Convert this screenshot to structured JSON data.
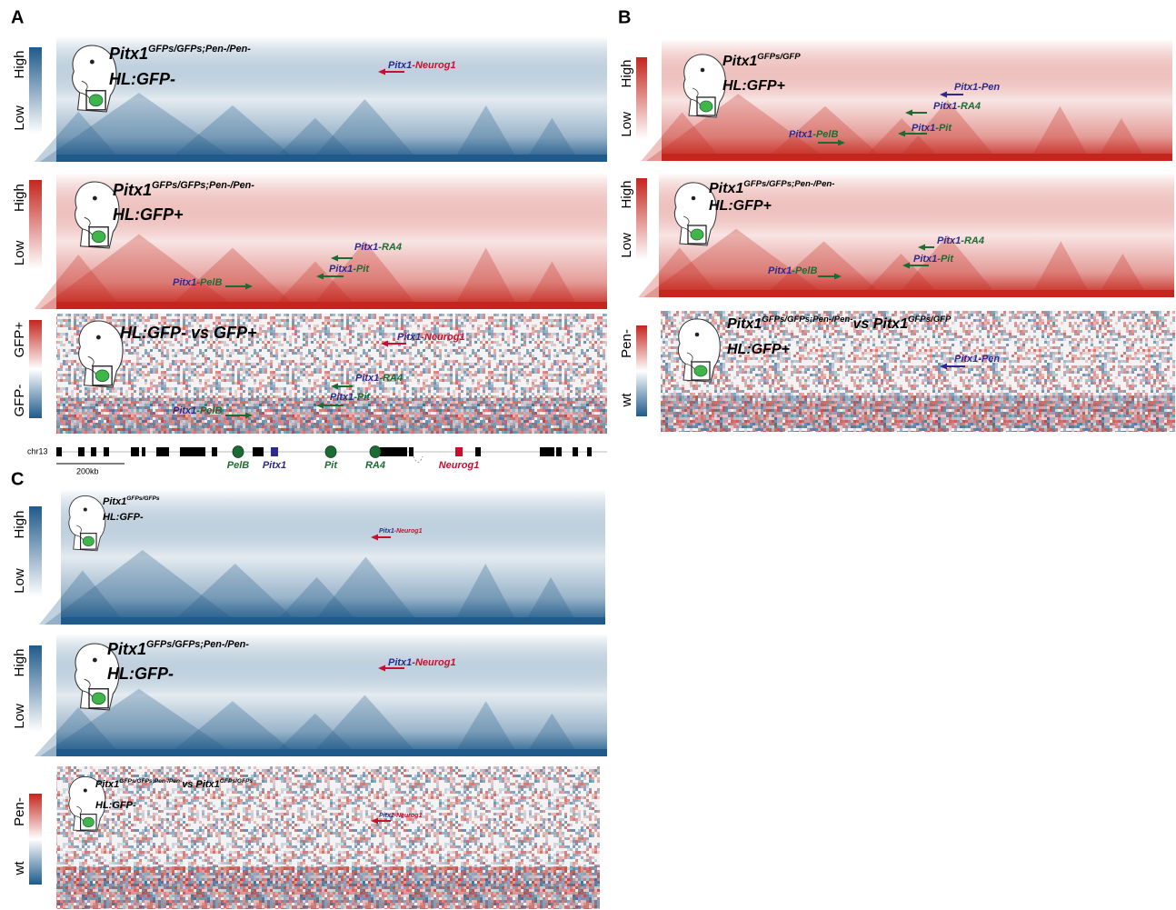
{
  "panels": [
    {
      "label": "A",
      "maps": [
        {
          "kind": "single",
          "color": "#1f5a8a",
          "scale": [
            "High",
            "Low"
          ],
          "title": [
            {
              "text": "Pitx1"
            },
            {
              "text": "GFPs/GFPs;Pen-/Pen-",
              "sup": true
            }
          ],
          "subtitle": "HL:GFP-",
          "arrows": [
            {
              "parts": [
                {
                  "text": "Pitx1",
                  "color": "#2d2a8f"
                },
                {
                  "text": "-Neurog1",
                  "color": "#c8102e"
                }
              ]
            }
          ]
        },
        {
          "kind": "single",
          "color": "#c4261d",
          "scale": [
            "High",
            "Low"
          ],
          "title": [
            {
              "text": "Pitx1"
            },
            {
              "text": "GFPs/GFPs;Pen-/Pen-",
              "sup": true
            }
          ],
          "subtitle": "HL:GFP+",
          "arrows": [
            {
              "parts": [
                {
                  "text": "Pitx1",
                  "color": "#2d2a8f"
                },
                {
                  "text": "-RA4",
                  "color": "#1d6b34"
                }
              ]
            },
            {
              "parts": [
                {
                  "text": "Pitx1",
                  "color": "#2d2a8f"
                },
                {
                  "text": "-Pit",
                  "color": "#1d6b34"
                }
              ]
            },
            {
              "parts": [
                {
                  "text": "Pitx1",
                  "color": "#2d2a8f"
                },
                {
                  "text": "-PelB",
                  "color": "#1d6b34"
                }
              ]
            }
          ]
        },
        {
          "kind": "diff",
          "color": "#c4261d",
          "color2": "#1f5a8a",
          "scale": [
            "GFP+",
            "GFP-"
          ],
          "title": [
            {
              "text": "HL:GFP- vs GFP+"
            }
          ],
          "arrows": [
            {
              "parts": [
                {
                  "text": "Pitx1",
                  "color": "#2d2a8f"
                },
                {
                  "text": "-Neurog1",
                  "color": "#c8102e"
                }
              ]
            },
            {
              "parts": [
                {
                  "text": "Pitx1",
                  "color": "#2d2a8f"
                },
                {
                  "text": "-RA4",
                  "color": "#1d6b34"
                }
              ]
            },
            {
              "parts": [
                {
                  "text": "Pitx1",
                  "color": "#2d2a8f"
                },
                {
                  "text": "-Pit",
                  "color": "#1d6b34"
                }
              ]
            },
            {
              "parts": [
                {
                  "text": "Pitx1",
                  "color": "#2d2a8f"
                },
                {
                  "text": "-PelB",
                  "color": "#1d6b34"
                }
              ]
            }
          ]
        }
      ],
      "track": {
        "chrom": "chr13",
        "scale_label": "200kb",
        "genes": [
          {
            "name": "PelB",
            "color": "#1d6b34"
          },
          {
            "name": "Pitx1",
            "color": "#2d2a8f"
          },
          {
            "name": "Pit",
            "color": "#1d6b34"
          },
          {
            "name": "RA4",
            "color": "#1d6b34"
          },
          {
            "name": "Neurog1",
            "color": "#c8102e"
          }
        ]
      }
    },
    {
      "label": "B",
      "maps": [
        {
          "kind": "single",
          "color": "#c4261d",
          "scale": [
            "High",
            "Low"
          ],
          "title": [
            {
              "text": "Pitx1"
            },
            {
              "text": "GFPs/GFP",
              "sup": true
            }
          ],
          "subtitle": "HL:GFP+",
          "arrows": [
            {
              "parts": [
                {
                  "text": "Pitx1",
                  "color": "#2d2a8f"
                },
                {
                  "text": "-Pen",
                  "color": "#2d2a8f"
                }
              ]
            },
            {
              "parts": [
                {
                  "text": "Pitx1",
                  "color": "#2d2a8f"
                },
                {
                  "text": "-RA4",
                  "color": "#1d6b34"
                }
              ]
            },
            {
              "parts": [
                {
                  "text": "Pitx1",
                  "color": "#2d2a8f"
                },
                {
                  "text": "-Pit",
                  "color": "#1d6b34"
                }
              ]
            },
            {
              "parts": [
                {
                  "text": "Pitx1",
                  "color": "#2d2a8f"
                },
                {
                  "text": "-PelB",
                  "color": "#1d6b34"
                }
              ]
            }
          ]
        },
        {
          "kind": "single",
          "color": "#c4261d",
          "scale": [
            "High",
            "Low"
          ],
          "title": [
            {
              "text": "Pitx1"
            },
            {
              "text": "GFPs/GFPs;Pen-/Pen-",
              "sup": true
            }
          ],
          "subtitle": "HL:GFP+",
          "arrows": [
            {
              "parts": [
                {
                  "text": "Pitx1",
                  "color": "#2d2a8f"
                },
                {
                  "text": "-RA4",
                  "color": "#1d6b34"
                }
              ]
            },
            {
              "parts": [
                {
                  "text": "Pitx1",
                  "color": "#2d2a8f"
                },
                {
                  "text": "-Pit",
                  "color": "#1d6b34"
                }
              ]
            },
            {
              "parts": [
                {
                  "text": "Pitx1",
                  "color": "#2d2a8f"
                },
                {
                  "text": "-PelB",
                  "color": "#1d6b34"
                }
              ]
            }
          ]
        },
        {
          "kind": "diff",
          "color": "#c4261d",
          "color2": "#1f5a8a",
          "scale": [
            "Pen-",
            "wt"
          ],
          "title": [
            {
              "text": "Pitx1"
            },
            {
              "text": "GFPs/GFPs;Pen-/Pen-",
              "sup": true
            },
            {
              "text": "vs Pitx1"
            },
            {
              "text": "GFPs/GFP",
              "sup": true
            }
          ],
          "subtitle": "HL:GFP+",
          "arrows": [
            {
              "parts": [
                {
                  "text": "Pitx1",
                  "color": "#2d2a8f"
                },
                {
                  "text": "-Pen",
                  "color": "#2d2a8f"
                }
              ]
            }
          ]
        }
      ]
    },
    {
      "label": "C",
      "maps": [
        {
          "kind": "single",
          "color": "#1f5a8a",
          "scale": [
            "High",
            "Low"
          ],
          "title": [
            {
              "text": "Pitx1"
            },
            {
              "text": "GFPs/GFPs",
              "sup": true
            }
          ],
          "subtitle": "HL:GFP-",
          "arrows": [
            {
              "parts": [
                {
                  "text": "Pitx1",
                  "color": "#2d2a8f"
                },
                {
                  "text": "-Neurog1",
                  "color": "#c8102e"
                }
              ]
            }
          ]
        },
        {
          "kind": "single",
          "color": "#1f5a8a",
          "scale": [
            "High",
            "Low"
          ],
          "title": [
            {
              "text": "Pitx1"
            },
            {
              "text": "GFPs/GFPs;Pen-/Pen-",
              "sup": true
            }
          ],
          "subtitle": "HL:GFP-",
          "arrows": [
            {
              "parts": [
                {
                  "text": "Pitx1",
                  "color": "#2d2a8f"
                },
                {
                  "text": "-Neurog1",
                  "color": "#c8102e"
                }
              ]
            }
          ]
        },
        {
          "kind": "diff",
          "color": "#c4261d",
          "color2": "#1f5a8a",
          "scale": [
            "Pen-",
            "wt"
          ],
          "title": [
            {
              "text": "Pitx1"
            },
            {
              "text": "GFPs/GFPs;Pen-/Pen-",
              "sup": true
            },
            {
              "text": "vs Pitx1"
            },
            {
              "text": "GFPs/GFPs",
              "sup": true
            }
          ],
          "subtitle": "HL:GFP-",
          "arrows": [
            {
              "parts": [
                {
                  "text": "Pitx1",
                  "color": "#2d2a8f"
                },
                {
                  "text": "-Neurog1",
                  "color": "#c8102e"
                }
              ]
            }
          ]
        }
      ]
    }
  ]
}
